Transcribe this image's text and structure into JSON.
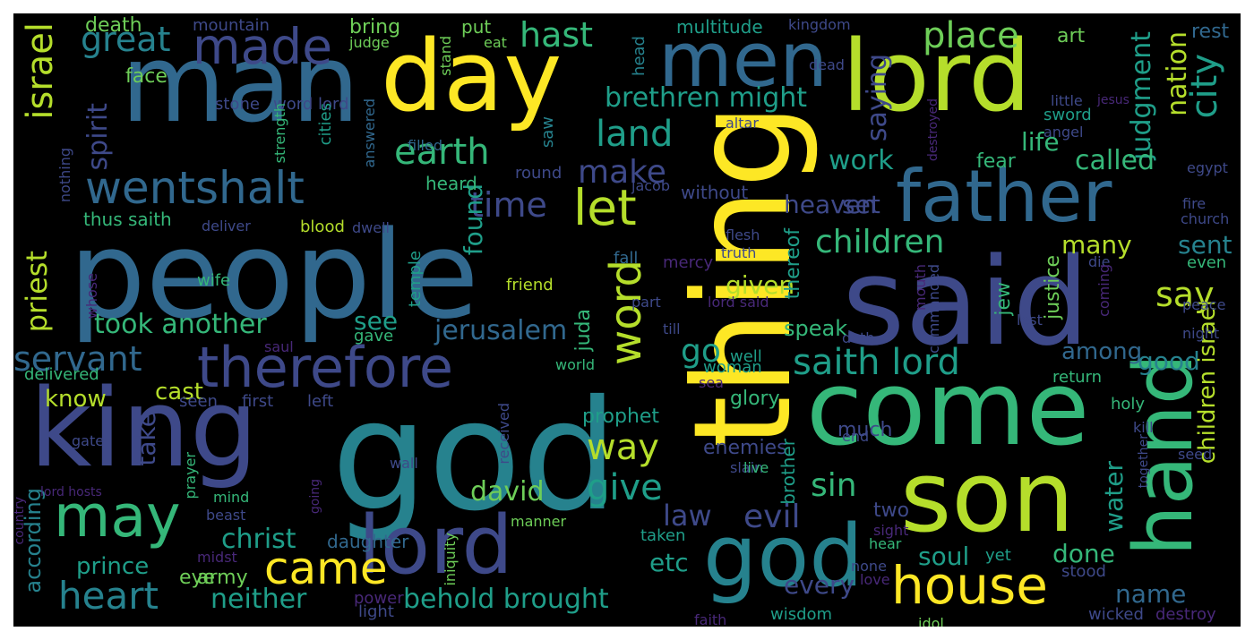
{
  "palette": {
    "background": "#000000",
    "yellow": "#fde725",
    "lime": "#b5de2b",
    "green": "#6ece58",
    "seagreen": "#35b779",
    "teal": "#1f9e89",
    "cyan": "#26828e",
    "blue": "#31688e",
    "indigo": "#3e4989",
    "purple": "#482878"
  },
  "words": [
    {
      "text": "god"
    },
    {
      "text": "people"
    },
    {
      "text": "said"
    },
    {
      "text": "thing"
    },
    {
      "text": "man"
    },
    {
      "text": "king"
    },
    {
      "text": "come"
    },
    {
      "text": "lord"
    },
    {
      "text": "son"
    },
    {
      "text": "day"
    },
    {
      "text": "lord"
    },
    {
      "text": "god"
    },
    {
      "text": "hand"
    },
    {
      "text": "men"
    },
    {
      "text": "father"
    },
    {
      "text": "therefore"
    },
    {
      "text": "may"
    },
    {
      "text": "house"
    },
    {
      "text": "came"
    },
    {
      "text": "made"
    },
    {
      "text": "wentshalt"
    },
    {
      "text": "israel"
    },
    {
      "text": "let"
    },
    {
      "text": "word"
    },
    {
      "text": "place"
    },
    {
      "text": "saith lord"
    },
    {
      "text": "hast"
    },
    {
      "text": "heart"
    },
    {
      "text": "servant"
    },
    {
      "text": "earth"
    },
    {
      "text": "children"
    },
    {
      "text": "time"
    },
    {
      "text": "land"
    },
    {
      "text": "city"
    },
    {
      "text": "make"
    },
    {
      "text": "great"
    },
    {
      "text": "took another"
    },
    {
      "text": "jerusalem"
    },
    {
      "text": "give"
    },
    {
      "text": "way"
    },
    {
      "text": "sin"
    },
    {
      "text": "david"
    },
    {
      "text": "christ"
    },
    {
      "text": "behold brought"
    },
    {
      "text": "neither"
    },
    {
      "text": "house"
    },
    {
      "text": "prince"
    },
    {
      "text": "evil"
    },
    {
      "text": "law"
    },
    {
      "text": "say"
    },
    {
      "text": "brethren might"
    },
    {
      "text": "priest"
    },
    {
      "text": "spirit"
    },
    {
      "text": "know"
    },
    {
      "text": "cast"
    },
    {
      "text": "take"
    },
    {
      "text": "saying"
    },
    {
      "text": "judgment"
    },
    {
      "text": "nation"
    },
    {
      "text": "called"
    },
    {
      "text": "work"
    },
    {
      "text": "life"
    },
    {
      "text": "set"
    },
    {
      "text": "heaven"
    },
    {
      "text": "sent"
    },
    {
      "text": "many"
    },
    {
      "text": "given"
    },
    {
      "text": "found"
    },
    {
      "text": "see"
    },
    {
      "text": "go"
    },
    {
      "text": "among"
    },
    {
      "text": "good"
    },
    {
      "text": "children israel"
    },
    {
      "text": "every"
    },
    {
      "text": "soul"
    },
    {
      "text": "done"
    },
    {
      "text": "name"
    },
    {
      "text": "water"
    },
    {
      "text": "according"
    },
    {
      "text": "etc"
    },
    {
      "text": "speak"
    },
    {
      "text": "prophet"
    },
    {
      "text": "enemies"
    },
    {
      "text": "glory"
    },
    {
      "text": "much"
    },
    {
      "text": "two"
    },
    {
      "text": "jew"
    },
    {
      "text": "justice"
    },
    {
      "text": "daughter"
    },
    {
      "text": "thus saith"
    },
    {
      "text": "eye"
    },
    {
      "text": "army"
    },
    {
      "text": "art"
    },
    {
      "text": "rest"
    },
    {
      "text": "death"
    },
    {
      "text": "mountain"
    },
    {
      "text": "bring"
    },
    {
      "text": "put"
    },
    {
      "text": "multitude"
    },
    {
      "text": "kingdom"
    },
    {
      "text": "judge"
    },
    {
      "text": "stand"
    },
    {
      "text": "eat"
    },
    {
      "text": "head"
    },
    {
      "text": "face"
    },
    {
      "text": "stone"
    },
    {
      "text": "word lord"
    },
    {
      "text": "dead"
    },
    {
      "text": "little"
    },
    {
      "text": "jesus"
    },
    {
      "text": "sword"
    },
    {
      "text": "angel"
    },
    {
      "text": "destroyed"
    },
    {
      "text": "altar"
    },
    {
      "text": "saw"
    },
    {
      "text": "strength"
    },
    {
      "text": "cities"
    },
    {
      "text": "filled"
    },
    {
      "text": "answered"
    },
    {
      "text": "nothing"
    },
    {
      "text": "round"
    },
    {
      "text": "heard"
    },
    {
      "text": "fear"
    },
    {
      "text": "egypt"
    },
    {
      "text": "jacob"
    },
    {
      "text": "without"
    },
    {
      "text": "deliver"
    },
    {
      "text": "blood"
    },
    {
      "text": "dwell"
    },
    {
      "text": "fire"
    },
    {
      "text": "church"
    },
    {
      "text": "flesh"
    },
    {
      "text": "truth"
    },
    {
      "text": "thereof"
    },
    {
      "text": "fall"
    },
    {
      "text": "mercy"
    },
    {
      "text": "temple"
    },
    {
      "text": "whose"
    },
    {
      "text": "wife"
    },
    {
      "text": "friend"
    },
    {
      "text": "part"
    },
    {
      "text": "lord said"
    },
    {
      "text": "mouth"
    },
    {
      "text": "die"
    },
    {
      "text": "even"
    },
    {
      "text": "commanded"
    },
    {
      "text": "coming"
    },
    {
      "text": "peace"
    },
    {
      "text": "lest"
    },
    {
      "text": "night"
    },
    {
      "text": "juda"
    },
    {
      "text": "gave"
    },
    {
      "text": "till"
    },
    {
      "text": "doth"
    },
    {
      "text": "well"
    },
    {
      "text": "woman"
    },
    {
      "text": "saul"
    },
    {
      "text": "world"
    },
    {
      "text": "return"
    },
    {
      "text": "delivered"
    },
    {
      "text": "sea"
    },
    {
      "text": "seen"
    },
    {
      "text": "first"
    },
    {
      "text": "left"
    },
    {
      "text": "holy"
    },
    {
      "text": "kill"
    },
    {
      "text": "end"
    },
    {
      "text": "gate"
    },
    {
      "text": "received"
    },
    {
      "text": "slain"
    },
    {
      "text": "live"
    },
    {
      "text": "brother"
    },
    {
      "text": "seed"
    },
    {
      "text": "together"
    },
    {
      "text": "wall"
    },
    {
      "text": "going"
    },
    {
      "text": "prayer"
    },
    {
      "text": "lord hosts"
    },
    {
      "text": "mind"
    },
    {
      "text": "beast"
    },
    {
      "text": "manner"
    },
    {
      "text": "sight"
    },
    {
      "text": "hear"
    },
    {
      "text": "country"
    },
    {
      "text": "iniquity"
    },
    {
      "text": "midst"
    },
    {
      "text": "taken"
    },
    {
      "text": "yet"
    },
    {
      "text": "none"
    },
    {
      "text": "love"
    },
    {
      "text": "stood"
    },
    {
      "text": "power"
    },
    {
      "text": "light"
    },
    {
      "text": "faith"
    },
    {
      "text": "wisdom"
    },
    {
      "text": "idol"
    },
    {
      "text": "wicked"
    },
    {
      "text": "destroy"
    }
  ]
}
